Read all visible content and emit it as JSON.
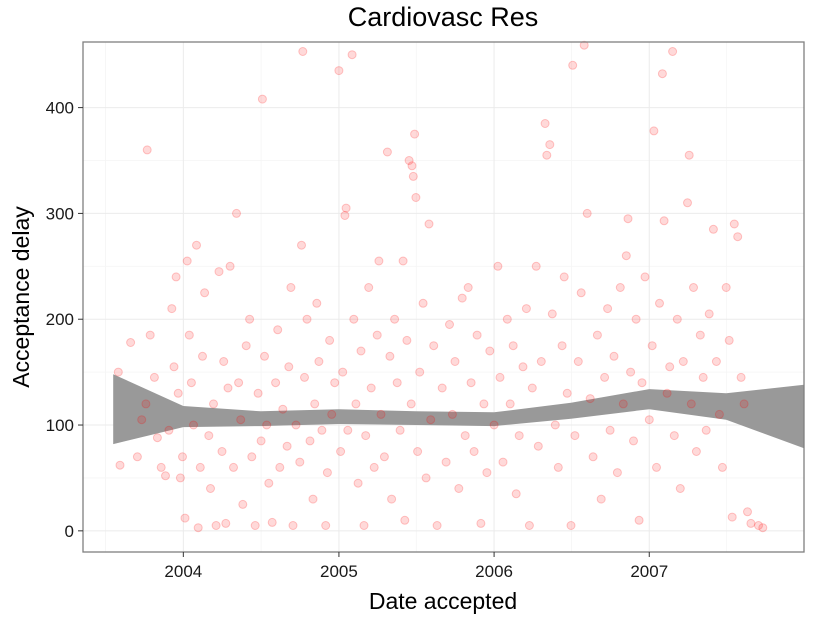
{
  "chart_data": {
    "type": "scatter",
    "title": "Cardiovasc Res",
    "xlabel": "Date accepted",
    "ylabel": "Acceptance delay",
    "x_ticks": [
      "2004",
      "2005",
      "2006",
      "2007"
    ],
    "x_range": [
      "2003-05-10",
      "2007-12-31"
    ],
    "y_ticks": [
      0,
      100,
      200,
      300,
      400
    ],
    "ylim": [
      -20,
      462
    ],
    "grid": true,
    "point_color": "#ff0000",
    "point_alpha": 0.15,
    "band_color": "#999999",
    "smooth_band": {
      "x": [
        "2003-07-20",
        "2004-01-01",
        "2004-07-01",
        "2005-01-01",
        "2005-07-01",
        "2006-01-01",
        "2006-07-01",
        "2007-01-01",
        "2007-07-01",
        "2007-12-31"
      ],
      "lower": [
        82,
        98,
        99,
        101,
        100,
        99,
        106,
        115,
        105,
        78
      ],
      "upper": [
        148,
        118,
        113,
        115,
        113,
        112,
        121,
        134,
        130,
        138
      ]
    },
    "points": [
      [
        "2003-08-01",
        150
      ],
      [
        "2003-08-05",
        62
      ],
      [
        "2003-08-30",
        178
      ],
      [
        "2003-09-15",
        70
      ],
      [
        "2003-09-25",
        105
      ],
      [
        "2003-10-05",
        120
      ],
      [
        "2003-10-08",
        360
      ],
      [
        "2003-10-15",
        185
      ],
      [
        "2003-10-25",
        145
      ],
      [
        "2003-11-01",
        88
      ],
      [
        "2003-11-10",
        60
      ],
      [
        "2003-11-20",
        52
      ],
      [
        "2003-11-28",
        95
      ],
      [
        "2003-12-05",
        210
      ],
      [
        "2003-12-10",
        155
      ],
      [
        "2003-12-15",
        240
      ],
      [
        "2003-12-20",
        130
      ],
      [
        "2003-12-25",
        50
      ],
      [
        "2003-12-30",
        70
      ],
      [
        "2004-01-05",
        12
      ],
      [
        "2004-01-10",
        255
      ],
      [
        "2004-01-15",
        185
      ],
      [
        "2004-01-20",
        140
      ],
      [
        "2004-01-25",
        100
      ],
      [
        "2004-02-01",
        270
      ],
      [
        "2004-02-05",
        3
      ],
      [
        "2004-02-10",
        60
      ],
      [
        "2004-02-15",
        165
      ],
      [
        "2004-02-20",
        225
      ],
      [
        "2004-03-01",
        90
      ],
      [
        "2004-03-05",
        40
      ],
      [
        "2004-03-12",
        120
      ],
      [
        "2004-03-18",
        5
      ],
      [
        "2004-03-25",
        245
      ],
      [
        "2004-04-01",
        75
      ],
      [
        "2004-04-05",
        160
      ],
      [
        "2004-04-10",
        7
      ],
      [
        "2004-04-15",
        135
      ],
      [
        "2004-04-20",
        250
      ],
      [
        "2004-04-28",
        60
      ],
      [
        "2004-05-05",
        300
      ],
      [
        "2004-05-10",
        140
      ],
      [
        "2004-05-15",
        105
      ],
      [
        "2004-05-20",
        25
      ],
      [
        "2004-05-28",
        175
      ],
      [
        "2004-06-05",
        200
      ],
      [
        "2004-06-10",
        70
      ],
      [
        "2004-06-18",
        5
      ],
      [
        "2004-06-25",
        130
      ],
      [
        "2004-07-02",
        85
      ],
      [
        "2004-07-05",
        408
      ],
      [
        "2004-07-10",
        165
      ],
      [
        "2004-07-15",
        100
      ],
      [
        "2004-07-20",
        45
      ],
      [
        "2004-07-28",
        8
      ],
      [
        "2004-08-05",
        140
      ],
      [
        "2004-08-10",
        190
      ],
      [
        "2004-08-15",
        60
      ],
      [
        "2004-08-22",
        115
      ],
      [
        "2004-09-01",
        80
      ],
      [
        "2004-09-05",
        155
      ],
      [
        "2004-09-10",
        230
      ],
      [
        "2004-09-15",
        5
      ],
      [
        "2004-09-22",
        100
      ],
      [
        "2004-10-01",
        65
      ],
      [
        "2004-10-05",
        270
      ],
      [
        "2004-10-08",
        453
      ],
      [
        "2004-10-12",
        145
      ],
      [
        "2004-10-18",
        200
      ],
      [
        "2004-10-25",
        85
      ],
      [
        "2004-11-01",
        30
      ],
      [
        "2004-11-05",
        120
      ],
      [
        "2004-11-10",
        215
      ],
      [
        "2004-11-15",
        160
      ],
      [
        "2004-11-22",
        95
      ],
      [
        "2004-12-01",
        5
      ],
      [
        "2004-12-05",
        55
      ],
      [
        "2004-12-10",
        180
      ],
      [
        "2004-12-15",
        110
      ],
      [
        "2004-12-22",
        140
      ],
      [
        "2005-01-01",
        435
      ],
      [
        "2005-01-05",
        75
      ],
      [
        "2005-01-10",
        150
      ],
      [
        "2005-01-15",
        298
      ],
      [
        "2005-01-18",
        305
      ],
      [
        "2005-01-22",
        95
      ],
      [
        "2005-02-01",
        450
      ],
      [
        "2005-02-05",
        200
      ],
      [
        "2005-02-10",
        120
      ],
      [
        "2005-02-15",
        45
      ],
      [
        "2005-02-22",
        170
      ],
      [
        "2005-03-01",
        5
      ],
      [
        "2005-03-05",
        90
      ],
      [
        "2005-03-12",
        230
      ],
      [
        "2005-03-18",
        135
      ],
      [
        "2005-03-25",
        60
      ],
      [
        "2005-04-01",
        185
      ],
      [
        "2005-04-05",
        255
      ],
      [
        "2005-04-10",
        110
      ],
      [
        "2005-04-18",
        70
      ],
      [
        "2005-04-25",
        358
      ],
      [
        "2005-05-01",
        165
      ],
      [
        "2005-05-05",
        30
      ],
      [
        "2005-05-12",
        200
      ],
      [
        "2005-05-18",
        140
      ],
      [
        "2005-05-25",
        95
      ],
      [
        "2005-06-01",
        255
      ],
      [
        "2005-06-05",
        10
      ],
      [
        "2005-06-10",
        180
      ],
      [
        "2005-06-15",
        350
      ],
      [
        "2005-06-20",
        120
      ],
      [
        "2005-06-22",
        345
      ],
      [
        "2005-06-25",
        335
      ],
      [
        "2005-06-28",
        375
      ],
      [
        "2005-07-01",
        315
      ],
      [
        "2005-07-05",
        75
      ],
      [
        "2005-07-10",
        150
      ],
      [
        "2005-07-18",
        215
      ],
      [
        "2005-07-25",
        50
      ],
      [
        "2005-08-01",
        290
      ],
      [
        "2005-08-05",
        105
      ],
      [
        "2005-08-12",
        175
      ],
      [
        "2005-08-20",
        5
      ],
      [
        "2005-09-01",
        135
      ],
      [
        "2005-09-10",
        65
      ],
      [
        "2005-09-18",
        195
      ],
      [
        "2005-09-25",
        110
      ],
      [
        "2005-10-01",
        160
      ],
      [
        "2005-10-10",
        40
      ],
      [
        "2005-10-18",
        220
      ],
      [
        "2005-10-25",
        90
      ],
      [
        "2005-11-01",
        230
      ],
      [
        "2005-11-08",
        140
      ],
      [
        "2005-11-15",
        75
      ],
      [
        "2005-11-22",
        185
      ],
      [
        "2005-12-01",
        7
      ],
      [
        "2005-12-08",
        120
      ],
      [
        "2005-12-15",
        55
      ],
      [
        "2005-12-22",
        170
      ],
      [
        "2006-01-01",
        100
      ],
      [
        "2006-01-10",
        250
      ],
      [
        "2006-01-15",
        145
      ],
      [
        "2006-01-22",
        65
      ],
      [
        "2006-02-01",
        200
      ],
      [
        "2006-02-08",
        120
      ],
      [
        "2006-02-15",
        175
      ],
      [
        "2006-02-22",
        35
      ],
      [
        "2006-03-01",
        90
      ],
      [
        "2006-03-10",
        155
      ],
      [
        "2006-03-18",
        210
      ],
      [
        "2006-03-25",
        5
      ],
      [
        "2006-04-01",
        135
      ],
      [
        "2006-04-10",
        250
      ],
      [
        "2006-04-15",
        80
      ],
      [
        "2006-04-22",
        160
      ],
      [
        "2006-05-01",
        385
      ],
      [
        "2006-05-05",
        355
      ],
      [
        "2006-05-12",
        365
      ],
      [
        "2006-05-18",
        205
      ],
      [
        "2006-05-25",
        100
      ],
      [
        "2006-06-01",
        60
      ],
      [
        "2006-06-10",
        175
      ],
      [
        "2006-06-15",
        240
      ],
      [
        "2006-06-22",
        130
      ],
      [
        "2006-07-01",
        5
      ],
      [
        "2006-07-05",
        440
      ],
      [
        "2006-07-10",
        90
      ],
      [
        "2006-07-18",
        160
      ],
      [
        "2006-07-25",
        225
      ],
      [
        "2006-08-01",
        459
      ],
      [
        "2006-08-08",
        300
      ],
      [
        "2006-08-15",
        125
      ],
      [
        "2006-08-22",
        70
      ],
      [
        "2006-09-01",
        185
      ],
      [
        "2006-09-10",
        30
      ],
      [
        "2006-09-18",
        145
      ],
      [
        "2006-09-25",
        210
      ],
      [
        "2006-10-01",
        95
      ],
      [
        "2006-10-10",
        165
      ],
      [
        "2006-10-18",
        55
      ],
      [
        "2006-10-25",
        230
      ],
      [
        "2006-11-01",
        120
      ],
      [
        "2006-11-08",
        260
      ],
      [
        "2006-11-12",
        295
      ],
      [
        "2006-11-18",
        150
      ],
      [
        "2006-11-25",
        85
      ],
      [
        "2006-12-01",
        200
      ],
      [
        "2006-12-08",
        10
      ],
      [
        "2006-12-15",
        140
      ],
      [
        "2006-12-22",
        240
      ],
      [
        "2007-01-01",
        105
      ],
      [
        "2007-01-08",
        175
      ],
      [
        "2007-01-12",
        378
      ],
      [
        "2007-01-18",
        60
      ],
      [
        "2007-01-25",
        215
      ],
      [
        "2007-02-01",
        432
      ],
      [
        "2007-02-05",
        293
      ],
      [
        "2007-02-12",
        130
      ],
      [
        "2007-02-18",
        155
      ],
      [
        "2007-02-25",
        453
      ],
      [
        "2007-03-01",
        90
      ],
      [
        "2007-03-08",
        200
      ],
      [
        "2007-03-15",
        40
      ],
      [
        "2007-03-22",
        160
      ],
      [
        "2007-04-01",
        310
      ],
      [
        "2007-04-05",
        355
      ],
      [
        "2007-04-10",
        120
      ],
      [
        "2007-04-15",
        230
      ],
      [
        "2007-04-22",
        75
      ],
      [
        "2007-05-01",
        185
      ],
      [
        "2007-05-08",
        145
      ],
      [
        "2007-05-15",
        95
      ],
      [
        "2007-05-22",
        205
      ],
      [
        "2007-06-01",
        285
      ],
      [
        "2007-06-08",
        160
      ],
      [
        "2007-06-15",
        110
      ],
      [
        "2007-06-22",
        60
      ],
      [
        "2007-07-01",
        230
      ],
      [
        "2007-07-08",
        180
      ],
      [
        "2007-07-15",
        13
      ],
      [
        "2007-07-20",
        290
      ],
      [
        "2007-07-28",
        278
      ],
      [
        "2007-08-05",
        145
      ],
      [
        "2007-08-12",
        120
      ],
      [
        "2007-08-20",
        18
      ],
      [
        "2007-08-28",
        7
      ],
      [
        "2007-09-15",
        5
      ],
      [
        "2007-09-25",
        3
      ]
    ]
  }
}
